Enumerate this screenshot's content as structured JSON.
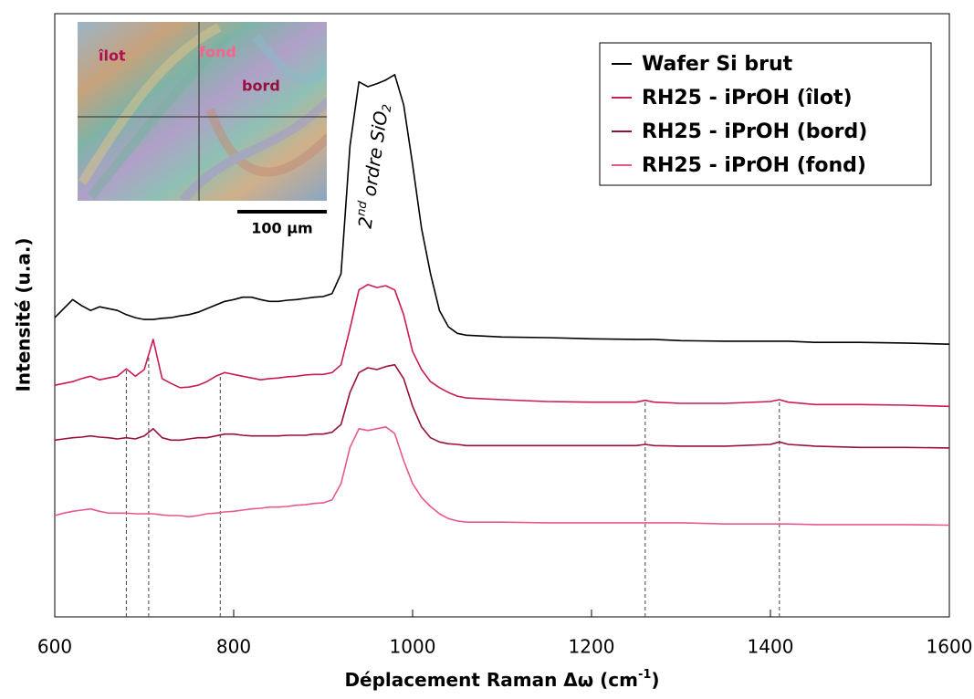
{
  "chart_data": {
    "type": "line",
    "x_label": [
      "Déplacement Raman Δω (cm",
      "-1",
      ")"
    ],
    "y_label": "Intensité (u.a.)",
    "xlim": [
      600,
      1600
    ],
    "xticks": [
      600,
      800,
      1000,
      1200,
      1400,
      1600
    ],
    "ylim": [
      0,
      100
    ],
    "legend": "top-right",
    "x": [
      600,
      610,
      620,
      630,
      640,
      650,
      660,
      670,
      680,
      690,
      700,
      710,
      720,
      730,
      740,
      750,
      760,
      770,
      780,
      790,
      800,
      810,
      820,
      830,
      840,
      850,
      860,
      870,
      880,
      890,
      900,
      910,
      920,
      930,
      940,
      950,
      960,
      970,
      980,
      990,
      1000,
      1010,
      1020,
      1030,
      1040,
      1050,
      1060,
      1100,
      1150,
      1200,
      1250,
      1260,
      1270,
      1300,
      1350,
      1400,
      1410,
      1420,
      1450,
      1500,
      1550,
      1600
    ],
    "series": [
      {
        "name": "Wafer Si brut",
        "color": "#000000",
        "values": [
          49.6,
          51.1,
          52.6,
          51.6,
          50.8,
          51.4,
          51.1,
          50.8,
          50.1,
          49.6,
          49.3,
          49.3,
          49.5,
          49.6,
          49.9,
          50.1,
          50.5,
          51.1,
          51.7,
          52.3,
          52.6,
          53.0,
          53.0,
          52.6,
          52.3,
          52.3,
          52.5,
          52.6,
          52.8,
          53.0,
          53.1,
          53.6,
          56.9,
          78.1,
          88.7,
          87.9,
          88.4,
          89.0,
          89.9,
          84.9,
          75.0,
          64.4,
          56.9,
          50.8,
          48.1,
          47.0,
          46.7,
          46.4,
          46.3,
          46.1,
          46.0,
          46.0,
          46.0,
          45.8,
          45.7,
          45.7,
          45.7,
          45.7,
          45.5,
          45.5,
          45.4,
          45.2
        ]
      },
      {
        "name": "RH25 - iPrOH (îlot)",
        "color": "#cc1a55",
        "values": [
          38.4,
          38.7,
          39.0,
          39.5,
          39.9,
          39.3,
          39.6,
          39.9,
          41.1,
          39.9,
          41.0,
          46.0,
          39.5,
          38.7,
          38.0,
          38.1,
          38.4,
          39.0,
          39.9,
          40.5,
          40.2,
          39.9,
          39.6,
          39.3,
          39.5,
          39.6,
          39.8,
          39.9,
          40.1,
          40.2,
          40.2,
          40.5,
          41.8,
          47.8,
          54.2,
          55.1,
          54.6,
          54.9,
          54.2,
          50.1,
          44.0,
          41.0,
          39.0,
          38.0,
          37.2,
          36.6,
          36.3,
          36.0,
          35.7,
          35.6,
          35.6,
          35.9,
          35.6,
          35.4,
          35.4,
          35.7,
          36.0,
          35.6,
          35.2,
          35.2,
          35.1,
          34.9
        ]
      },
      {
        "name": "RH25 - iPrOH (bord)",
        "color": "#9b0f3f",
        "values": [
          29.3,
          29.5,
          29.7,
          29.8,
          30.0,
          29.8,
          29.7,
          29.5,
          29.7,
          29.5,
          30.0,
          31.2,
          29.7,
          29.3,
          29.3,
          29.5,
          29.7,
          29.7,
          30.0,
          30.3,
          30.3,
          30.1,
          30.0,
          30.0,
          30.0,
          30.0,
          30.1,
          30.1,
          30.1,
          30.3,
          30.3,
          30.6,
          31.9,
          37.2,
          40.5,
          41.3,
          41.0,
          41.5,
          41.8,
          39.5,
          34.9,
          31.5,
          29.7,
          29.0,
          28.7,
          28.6,
          28.4,
          28.4,
          28.4,
          28.4,
          28.4,
          28.6,
          28.4,
          28.3,
          28.3,
          28.6,
          29.0,
          28.6,
          28.3,
          28.1,
          28.1,
          28.0
        ]
      },
      {
        "name": "RH25 - iPrOH (fond)",
        "color": "#e8578f",
        "values": [
          16.8,
          17.2,
          17.5,
          17.7,
          17.9,
          17.5,
          17.2,
          17.2,
          17.2,
          17.1,
          17.1,
          17.1,
          16.9,
          16.8,
          16.8,
          16.6,
          16.8,
          17.1,
          17.2,
          17.4,
          17.5,
          17.7,
          17.9,
          18.0,
          18.2,
          18.2,
          18.3,
          18.5,
          18.6,
          18.8,
          18.9,
          19.4,
          22.1,
          28.1,
          31.2,
          30.9,
          31.2,
          31.5,
          30.4,
          25.9,
          22.1,
          19.8,
          18.3,
          17.1,
          16.3,
          15.9,
          15.7,
          15.7,
          15.6,
          15.6,
          15.6,
          15.6,
          15.6,
          15.6,
          15.4,
          15.4,
          15.4,
          15.4,
          15.3,
          15.3,
          15.3,
          15.2
        ]
      }
    ],
    "reference_lines": [
      680,
      705,
      785,
      1260,
      1410
    ],
    "annotation": [
      "2",
      "nd",
      " ordre SiO",
      "2"
    ],
    "inset": {
      "labels": [
        "îlot",
        "fond",
        "bord"
      ],
      "scale": "100 µm"
    }
  }
}
